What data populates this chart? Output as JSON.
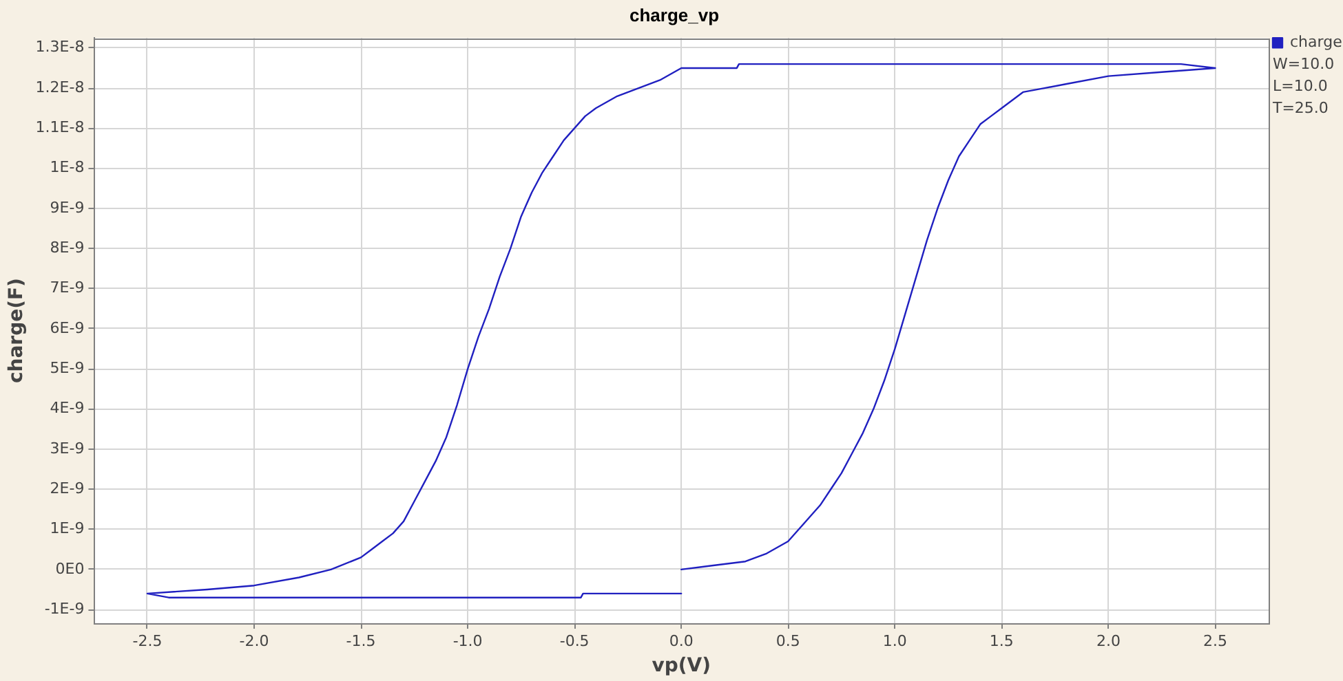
{
  "chart_data": {
    "type": "line",
    "title": "charge_vp",
    "xlabel": "vp(V)",
    "ylabel": "charge(F)",
    "annotations": [
      "W=10.0",
      "L=10.0",
      "T=25.0"
    ],
    "series": [
      {
        "name": "charge",
        "color": "#2020c0",
        "x": [
          0.0,
          0.15,
          0.3,
          0.4,
          0.5,
          0.55,
          0.6,
          0.65,
          0.7,
          0.75,
          0.8,
          0.85,
          0.9,
          0.95,
          1.0,
          1.05,
          1.1,
          1.15,
          1.2,
          1.25,
          1.3,
          1.35,
          1.4,
          1.45,
          1.5,
          1.6,
          1.7,
          1.8,
          2.0,
          2.25,
          2.5,
          2.34,
          0.27,
          0.26,
          0.0,
          -0.1,
          -0.2,
          -0.3,
          -0.4,
          -0.45,
          -0.5,
          -0.55,
          -0.6,
          -0.65,
          -0.7,
          -0.75,
          -0.8,
          -0.85,
          -0.9,
          -0.95,
          -1.0,
          -1.05,
          -1.1,
          -1.15,
          -1.2,
          -1.25,
          -1.3,
          -1.35,
          -1.4,
          -1.45,
          -1.5,
          -1.64,
          -1.79,
          -2.0,
          -2.22,
          -2.5,
          -2.4,
          -0.47,
          -0.46,
          0.0
        ],
        "values": [
          0.0,
          1e-10,
          2e-10,
          4e-10,
          7e-10,
          1e-09,
          1.3e-09,
          1.6e-09,
          2e-09,
          2.4e-09,
          2.9e-09,
          3.4e-09,
          4e-09,
          4.7e-09,
          5.5e-09,
          6.4e-09,
          7.3e-09,
          8.2e-09,
          9e-09,
          9.7e-09,
          1.03e-08,
          1.07e-08,
          1.11e-08,
          1.13e-08,
          1.15e-08,
          1.19e-08,
          1.2e-08,
          1.21e-08,
          1.23e-08,
          1.24e-08,
          1.25e-08,
          1.26e-08,
          1.26e-08,
          1.25e-08,
          1.25e-08,
          1.22e-08,
          1.2e-08,
          1.18e-08,
          1.15e-08,
          1.13e-08,
          1.1e-08,
          1.07e-08,
          1.03e-08,
          9.9e-09,
          9.4e-09,
          8.8e-09,
          8e-09,
          7.3e-09,
          6.5e-09,
          5.8e-09,
          5e-09,
          4.1e-09,
          3.3e-09,
          2.7e-09,
          2.2e-09,
          1.7e-09,
          1.2e-09,
          9e-10,
          7e-10,
          5e-10,
          3e-10,
          0.0,
          -2e-10,
          -4e-10,
          -5e-10,
          -6e-10,
          -7e-10,
          -7e-10,
          -6e-10,
          -6e-10
        ]
      }
    ],
    "xlim": [
      -2.75,
      2.75
    ],
    "xticks": [
      -2.5,
      {
        "value": -2,
        "label": "-2.0"
      },
      -1.5,
      {
        "value": -1,
        "label": "-1.0"
      },
      -0.5,
      {
        "value": 0,
        "label": "0.0"
      },
      0.5,
      {
        "value": 1,
        "label": "1.0"
      },
      1.5,
      {
        "value": 2,
        "label": "2.0"
      },
      2.5
    ],
    "ylim": [
      -1.34e-09,
      1.325e-08
    ],
    "yticks": [
      {
        "value": -1e-09,
        "label": "-1E-9"
      },
      {
        "value": 0,
        "label": "0E0"
      },
      {
        "value": 1e-09,
        "label": "1E-9"
      },
      {
        "value": 2e-09,
        "label": "2E-9"
      },
      {
        "value": 3e-09,
        "label": "3E-9"
      },
      {
        "value": 4e-09,
        "label": "4E-9"
      },
      {
        "value": 5e-09,
        "label": "5E-9"
      },
      {
        "value": 6e-09,
        "label": "6E-9"
      },
      {
        "value": 7e-09,
        "label": "7E-9"
      },
      {
        "value": 8e-09,
        "label": "8E-9"
      },
      {
        "value": 9e-09,
        "label": "9E-9"
      },
      {
        "value": 1e-08,
        "label": "1E-8"
      },
      {
        "value": 1.1e-08,
        "label": "1.1E-8"
      },
      {
        "value": 1.2e-08,
        "label": "1.2E-8"
      },
      {
        "value": 1.3e-08,
        "label": "1.3E-8"
      }
    ],
    "grid": true,
    "legend": "top right",
    "marker": "none",
    "line_style": "solid"
  }
}
